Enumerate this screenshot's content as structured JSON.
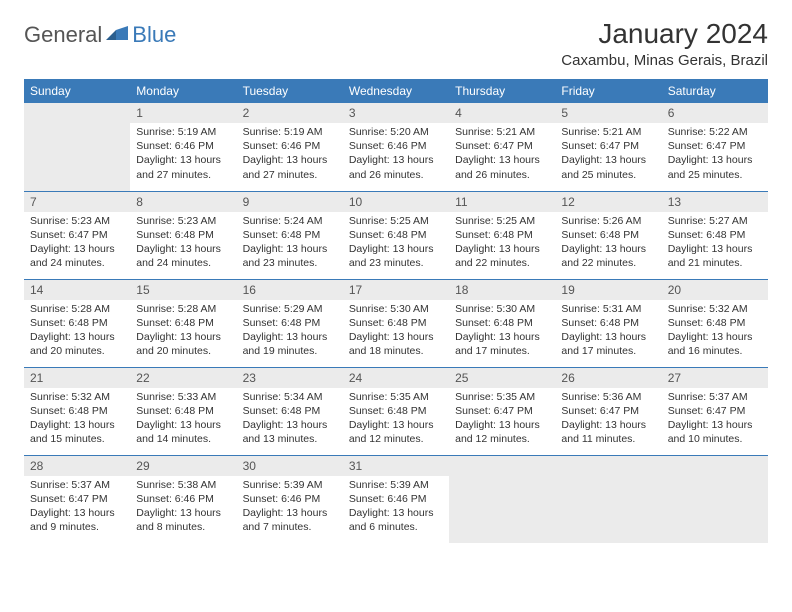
{
  "logo": {
    "text1": "General",
    "text2": "Blue"
  },
  "header": {
    "month_title": "January 2024",
    "location": "Caxambu, Minas Gerais, Brazil"
  },
  "colors": {
    "header_bg": "#3a7ab8",
    "header_text": "#ffffff",
    "daynum_bg": "#ebebeb",
    "rule": "#3a7ab8"
  },
  "weekdays": [
    "Sunday",
    "Monday",
    "Tuesday",
    "Wednesday",
    "Thursday",
    "Friday",
    "Saturday"
  ],
  "weeks": [
    [
      null,
      {
        "n": "1",
        "sunrise": "5:19 AM",
        "sunset": "6:46 PM",
        "daylight": "13 hours and 27 minutes."
      },
      {
        "n": "2",
        "sunrise": "5:19 AM",
        "sunset": "6:46 PM",
        "daylight": "13 hours and 27 minutes."
      },
      {
        "n": "3",
        "sunrise": "5:20 AM",
        "sunset": "6:46 PM",
        "daylight": "13 hours and 26 minutes."
      },
      {
        "n": "4",
        "sunrise": "5:21 AM",
        "sunset": "6:47 PM",
        "daylight": "13 hours and 26 minutes."
      },
      {
        "n": "5",
        "sunrise": "5:21 AM",
        "sunset": "6:47 PM",
        "daylight": "13 hours and 25 minutes."
      },
      {
        "n": "6",
        "sunrise": "5:22 AM",
        "sunset": "6:47 PM",
        "daylight": "13 hours and 25 minutes."
      }
    ],
    [
      {
        "n": "7",
        "sunrise": "5:23 AM",
        "sunset": "6:47 PM",
        "daylight": "13 hours and 24 minutes."
      },
      {
        "n": "8",
        "sunrise": "5:23 AM",
        "sunset": "6:48 PM",
        "daylight": "13 hours and 24 minutes."
      },
      {
        "n": "9",
        "sunrise": "5:24 AM",
        "sunset": "6:48 PM",
        "daylight": "13 hours and 23 minutes."
      },
      {
        "n": "10",
        "sunrise": "5:25 AM",
        "sunset": "6:48 PM",
        "daylight": "13 hours and 23 minutes."
      },
      {
        "n": "11",
        "sunrise": "5:25 AM",
        "sunset": "6:48 PM",
        "daylight": "13 hours and 22 minutes."
      },
      {
        "n": "12",
        "sunrise": "5:26 AM",
        "sunset": "6:48 PM",
        "daylight": "13 hours and 22 minutes."
      },
      {
        "n": "13",
        "sunrise": "5:27 AM",
        "sunset": "6:48 PM",
        "daylight": "13 hours and 21 minutes."
      }
    ],
    [
      {
        "n": "14",
        "sunrise": "5:28 AM",
        "sunset": "6:48 PM",
        "daylight": "13 hours and 20 minutes."
      },
      {
        "n": "15",
        "sunrise": "5:28 AM",
        "sunset": "6:48 PM",
        "daylight": "13 hours and 20 minutes."
      },
      {
        "n": "16",
        "sunrise": "5:29 AM",
        "sunset": "6:48 PM",
        "daylight": "13 hours and 19 minutes."
      },
      {
        "n": "17",
        "sunrise": "5:30 AM",
        "sunset": "6:48 PM",
        "daylight": "13 hours and 18 minutes."
      },
      {
        "n": "18",
        "sunrise": "5:30 AM",
        "sunset": "6:48 PM",
        "daylight": "13 hours and 17 minutes."
      },
      {
        "n": "19",
        "sunrise": "5:31 AM",
        "sunset": "6:48 PM",
        "daylight": "13 hours and 17 minutes."
      },
      {
        "n": "20",
        "sunrise": "5:32 AM",
        "sunset": "6:48 PM",
        "daylight": "13 hours and 16 minutes."
      }
    ],
    [
      {
        "n": "21",
        "sunrise": "5:32 AM",
        "sunset": "6:48 PM",
        "daylight": "13 hours and 15 minutes."
      },
      {
        "n": "22",
        "sunrise": "5:33 AM",
        "sunset": "6:48 PM",
        "daylight": "13 hours and 14 minutes."
      },
      {
        "n": "23",
        "sunrise": "5:34 AM",
        "sunset": "6:48 PM",
        "daylight": "13 hours and 13 minutes."
      },
      {
        "n": "24",
        "sunrise": "5:35 AM",
        "sunset": "6:48 PM",
        "daylight": "13 hours and 12 minutes."
      },
      {
        "n": "25",
        "sunrise": "5:35 AM",
        "sunset": "6:47 PM",
        "daylight": "13 hours and 12 minutes."
      },
      {
        "n": "26",
        "sunrise": "5:36 AM",
        "sunset": "6:47 PM",
        "daylight": "13 hours and 11 minutes."
      },
      {
        "n": "27",
        "sunrise": "5:37 AM",
        "sunset": "6:47 PM",
        "daylight": "13 hours and 10 minutes."
      }
    ],
    [
      {
        "n": "28",
        "sunrise": "5:37 AM",
        "sunset": "6:47 PM",
        "daylight": "13 hours and 9 minutes."
      },
      {
        "n": "29",
        "sunrise": "5:38 AM",
        "sunset": "6:46 PM",
        "daylight": "13 hours and 8 minutes."
      },
      {
        "n": "30",
        "sunrise": "5:39 AM",
        "sunset": "6:46 PM",
        "daylight": "13 hours and 7 minutes."
      },
      {
        "n": "31",
        "sunrise": "5:39 AM",
        "sunset": "6:46 PM",
        "daylight": "13 hours and 6 minutes."
      },
      null,
      null,
      null
    ]
  ],
  "labels": {
    "sunrise": "Sunrise: ",
    "sunset": "Sunset: ",
    "daylight": "Daylight: "
  }
}
